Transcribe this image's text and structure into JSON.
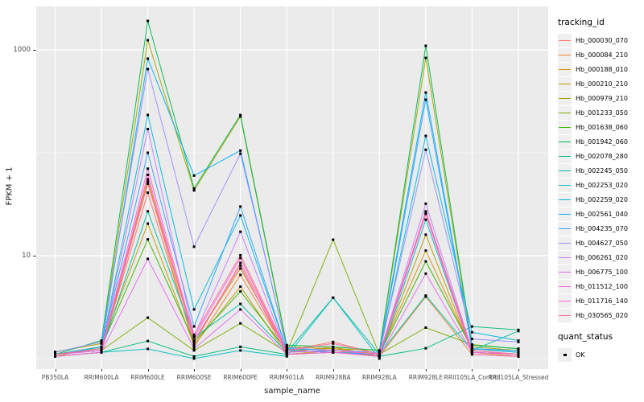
{
  "chart_data": {
    "type": "line",
    "title": "",
    "xlabel": "sample_name",
    "ylabel": "FPKM + 1",
    "scale": "log10",
    "grid": "on",
    "panel_bg": "#EBEBEB",
    "grid_color": "#FFFFFF",
    "tick_label_color": "#4D4D4D",
    "point_color": "#000000",
    "legend_position": "right",
    "legend_title": "tracking_id",
    "legend2_title": "quant_status",
    "legend2_items": [
      {
        "label": "OK",
        "symbol": "black-square-point"
      }
    ],
    "x_categories": [
      "PB350LA",
      "RRIM600LA",
      "RRIM600LE",
      "RRIM600SE",
      "RRIM600PE",
      "RRIM901LA",
      "RRIM928BA",
      "RRIM928LA",
      "RRIM928LE",
      "RRII105LA_Control",
      "RRII105LA_Stressed"
    ],
    "y_ticks": [
      {
        "value": 10,
        "label": "10"
      },
      {
        "value": 1000,
        "label": "1000"
      }
    ],
    "y_minor_values": [
      1,
      100
    ],
    "y_range_approx": [
      0.8,
      2600
    ],
    "series": [
      {
        "name": "Hb_000030_070",
        "color": "#F8766D",
        "values": [
          1.1,
          1.2,
          41,
          1.4,
          8.5,
          1.2,
          1.45,
          1.1,
          26.5,
          1.15,
          1.1
        ]
      },
      {
        "name": "Hb_000084_210",
        "color": "#EA8331",
        "values": [
          1.05,
          1.15,
          52,
          1.3,
          6.5,
          1.15,
          1.3,
          1.05,
          4.0,
          1.1,
          1.05
        ]
      },
      {
        "name": "Hb_000188_010",
        "color": "#D89000",
        "values": [
          1.1,
          1.25,
          55,
          1.5,
          7.5,
          1.2,
          1.25,
          1.1,
          11.2,
          1.2,
          1.1
        ]
      },
      {
        "name": "Hb_000210_210",
        "color": "#C09B00",
        "values": [
          1.05,
          1.3,
          20.5,
          1.35,
          5.0,
          1.1,
          1.2,
          1.05,
          16,
          1.15,
          1.05
        ]
      },
      {
        "name": "Hb_000979_210",
        "color": "#A3A500",
        "values": [
          1.16,
          1.4,
          1240,
          43,
          225,
          1.3,
          1.25,
          1.2,
          835,
          1.3,
          1.2
        ]
      },
      {
        "name": "Hb_001233_050",
        "color": "#7CAE00",
        "values": [
          1.1,
          1.2,
          2.5,
          1.2,
          2.2,
          1.15,
          14.3,
          1.1,
          2.0,
          1.37,
          1.24
        ]
      },
      {
        "name": "Hb_001638_060",
        "color": "#39B600",
        "values": [
          1.1,
          1.3,
          14.4,
          1.45,
          4.5,
          1.2,
          1.15,
          1.1,
          8.8,
          1.25,
          1.15
        ]
      },
      {
        "name": "Hb_001942_060",
        "color": "#00BB4E",
        "values": [
          1.1,
          1.5,
          1910,
          45,
          233,
          1.35,
          1.3,
          1.2,
          1094,
          1.35,
          1.25
        ]
      },
      {
        "name": "Hb_002078_280",
        "color": "#00BF7D",
        "values": [
          1.05,
          1.15,
          1.48,
          1.05,
          1.3,
          1.1,
          1.15,
          1.05,
          1.26,
          2.05,
          1.9
        ]
      },
      {
        "name": "Hb_002245_050",
        "color": "#00C1A3",
        "values": [
          1.1,
          1.2,
          27,
          1.6,
          3.4,
          1.15,
          3.9,
          1.1,
          4.1,
          1.2,
          1.85
        ]
      },
      {
        "name": "Hb_002253_020",
        "color": "#00BFC4",
        "values": [
          1.05,
          1.15,
          1.24,
          1.0,
          1.2,
          1.05,
          3.9,
          1.0,
          22.4,
          1.15,
          1.1
        ]
      },
      {
        "name": "Hb_002259_020",
        "color": "#00BAE0",
        "values": [
          1.1,
          1.25,
          233,
          3.0,
          24.6,
          1.2,
          1.15,
          1.1,
          146,
          1.8,
          1.5
        ]
      },
      {
        "name": "Hb_002561_040",
        "color": "#00B0F6",
        "values": [
          1.1,
          1.3,
          820,
          60,
          105,
          1.25,
          1.2,
          1.15,
          385,
          1.25,
          1.15
        ]
      },
      {
        "name": "Hb_004235_070",
        "color": "#35A2FF",
        "values": [
          1.1,
          1.25,
          100,
          2.05,
          30,
          1.2,
          1.15,
          1.1,
          328,
          1.25,
          1.2
        ]
      },
      {
        "name": "Hb_004627_050",
        "color": "#9590FF",
        "values": [
          1.15,
          1.45,
          650,
          12.2,
          98,
          1.28,
          1.2,
          1.15,
          107,
          1.55,
          1.45
        ]
      },
      {
        "name": "Hb_006261_020",
        "color": "#C77CFF",
        "values": [
          1.1,
          1.2,
          170,
          1.65,
          17.1,
          1.15,
          1.2,
          1.1,
          32,
          1.2,
          1.1
        ]
      },
      {
        "name": "Hb_006775_100",
        "color": "#E76BF3",
        "values": [
          1.05,
          1.15,
          9.3,
          1.25,
          3.0,
          1.1,
          1.15,
          1.05,
          6.7,
          1.15,
          1.1
        ]
      },
      {
        "name": "Hb_011512_100",
        "color": "#FA62DB",
        "values": [
          1.1,
          1.2,
          70,
          1.6,
          9.5,
          1.15,
          1.2,
          1.1,
          27,
          1.15,
          1.1
        ]
      },
      {
        "name": "Hb_011716_140",
        "color": "#FF61CC",
        "values": [
          1.05,
          1.15,
          61,
          1.5,
          8.0,
          1.1,
          1.15,
          1.05,
          25.5,
          1.1,
          1.05
        ]
      },
      {
        "name": "Hb_030565_020",
        "color": "#FF6A98",
        "values": [
          1.1,
          1.25,
          50,
          1.7,
          10.1,
          1.2,
          1.4,
          1.1,
          26,
          1.2,
          1.1
        ]
      }
    ]
  }
}
